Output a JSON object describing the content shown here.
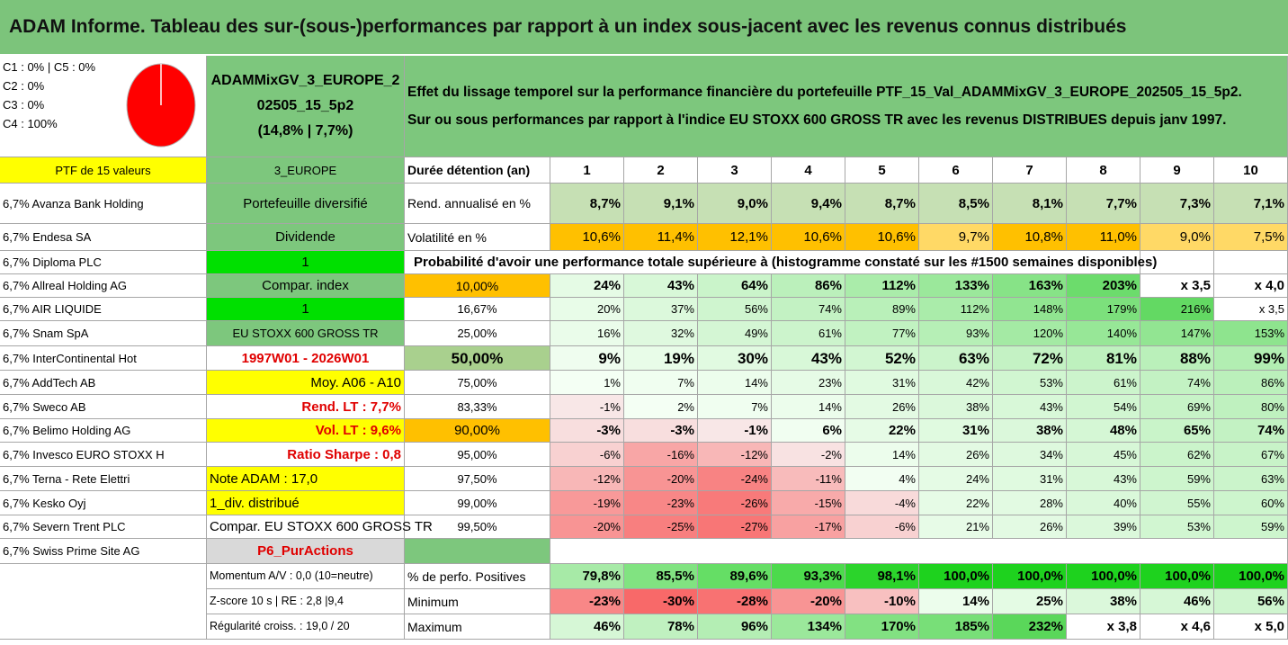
{
  "title": "ADAM Informe. Tableau des sur-(sous-)performances par rapport à un index sous-jacent avec les revenus connus distribués",
  "pie_legend": [
    "C1 : 0% | C5 : 0%",
    "C2 : 0%",
    "C3 : 0%",
    "C4 : 100%"
  ],
  "portfolio_name": [
    "ADAMMixGV_3_EUROPE_2",
    "02505_15_5p2",
    "(14,8% | 7,7%)"
  ],
  "description": [
    "Effet du lissage temporel sur la performance financière du portefeuille PTF_15_Val_ADAMMixGV_3_EUROPE_202505_15_5p2.",
    "Sur ou sous performances par rapport à l'indice EU STOXX 600 GROSS TR avec les revenus DISTRIBUES depuis janv 1997."
  ],
  "ptf_label": "PTF de 15 valeurs",
  "holdings": [
    "6,7% Avanza Bank Holding",
    "6,7% Endesa SA",
    "6,7% Diploma PLC",
    "6,7% Allreal Holding AG",
    "6,7% AIR LIQUIDE",
    "6,7% Snam SpA",
    "6,7% InterContinental Hot",
    "6,7% AddTech AB",
    "6,7% Sweco AB",
    "6,7% Belimo Holding AG",
    "6,7% Invesco EURO STOXX H",
    "6,7% Terna - Rete Elettri",
    "6,7% Kesko Oyj",
    "6,7% Severn Trent PLC",
    "6,7% Swiss Prime Site AG"
  ],
  "info": [
    "3_EUROPE",
    "Portefeuille diversifié",
    "Dividende",
    "1",
    "Compar. index",
    "1",
    "EU STOXX 600 GROSS TR",
    "1997W01 - 2026W01",
    "Moy. A06 - A10",
    "Rend. LT : 7,7%",
    "Vol. LT : 9,6%",
    "Ratio Sharpe : 0,8",
    "Note ADAM : 17,0",
    "1_div. distribué",
    "Compar. EU STOXX 600 GROSS TR",
    "P6_PurActions"
  ],
  "stats_labels": [
    "Momentum A/V : 0,0 (10=neutre)",
    "Z-score 10 s | RE : 2,8 |9,4",
    "Régularité croiss. : 19,0 / 20"
  ],
  "header": {
    "label": "Durée détention (an)",
    "years": [
      "1",
      "2",
      "3",
      "4",
      "5",
      "6",
      "7",
      "8",
      "9",
      "10"
    ]
  },
  "rend": {
    "label": "Rend. annualisé en %",
    "values": [
      "8,7%",
      "9,1%",
      "9,0%",
      "9,4%",
      "8,7%",
      "8,5%",
      "8,1%",
      "7,7%",
      "7,3%",
      "7,1%"
    ]
  },
  "vol": {
    "label": "Volatilité en %",
    "values": [
      "10,6%",
      "11,4%",
      "12,1%",
      "10,6%",
      "10,6%",
      "9,7%",
      "10,8%",
      "11,0%",
      "9,0%",
      "7,5%"
    ]
  },
  "prob_title": "Probabilité d'avoir une performance totale supérieure à (histogramme constaté sur les #1500 semaines disponibles)",
  "prob_rows": [
    {
      "p": "10,00%",
      "v": [
        "24%",
        "43%",
        "64%",
        "86%",
        "112%",
        "133%",
        "163%",
        "203%",
        "x 3,5",
        "x 4,0"
      ]
    },
    {
      "p": "16,67%",
      "v": [
        "20%",
        "37%",
        "56%",
        "74%",
        "89%",
        "112%",
        "148%",
        "179%",
        "216%",
        "x 3,5"
      ]
    },
    {
      "p": "25,00%",
      "v": [
        "16%",
        "32%",
        "49%",
        "61%",
        "77%",
        "93%",
        "120%",
        "140%",
        "147%",
        "153%"
      ]
    },
    {
      "p": "50,00%",
      "v": [
        "9%",
        "19%",
        "30%",
        "43%",
        "52%",
        "63%",
        "72%",
        "81%",
        "88%",
        "99%"
      ]
    },
    {
      "p": "75,00%",
      "v": [
        "1%",
        "7%",
        "14%",
        "23%",
        "31%",
        "42%",
        "53%",
        "61%",
        "74%",
        "86%"
      ]
    },
    {
      "p": "83,33%",
      "v": [
        "-1%",
        "2%",
        "7%",
        "14%",
        "26%",
        "38%",
        "43%",
        "54%",
        "69%",
        "80%"
      ]
    },
    {
      "p": "90,00%",
      "v": [
        "-3%",
        "-3%",
        "-1%",
        "6%",
        "22%",
        "31%",
        "38%",
        "48%",
        "65%",
        "74%"
      ]
    },
    {
      "p": "95,00%",
      "v": [
        "-6%",
        "-16%",
        "-12%",
        "-2%",
        "14%",
        "26%",
        "34%",
        "45%",
        "62%",
        "67%"
      ]
    },
    {
      "p": "97,50%",
      "v": [
        "-12%",
        "-20%",
        "-24%",
        "-11%",
        "4%",
        "24%",
        "31%",
        "43%",
        "59%",
        "63%"
      ]
    },
    {
      "p": "99,00%",
      "v": [
        "-19%",
        "-23%",
        "-26%",
        "-15%",
        "-4%",
        "22%",
        "28%",
        "40%",
        "55%",
        "60%"
      ]
    },
    {
      "p": "99,50%",
      "v": [
        "-20%",
        "-25%",
        "-27%",
        "-17%",
        "-6%",
        "21%",
        "26%",
        "39%",
        "53%",
        "59%"
      ]
    }
  ],
  "summary_rows": [
    {
      "label": "% de perfo. Positives",
      "v": [
        "79,8%",
        "85,5%",
        "89,6%",
        "93,3%",
        "98,1%",
        "100,0%",
        "100,0%",
        "100,0%",
        "100,0%",
        "100,0%"
      ]
    },
    {
      "label": "Minimum",
      "v": [
        "-23%",
        "-30%",
        "-28%",
        "-20%",
        "-10%",
        "14%",
        "25%",
        "38%",
        "46%",
        "56%"
      ]
    },
    {
      "label": "Maximum",
      "v": [
        "46%",
        "78%",
        "96%",
        "134%",
        "170%",
        "185%",
        "232%",
        "x 3,8",
        "x 4,6",
        "x 5,0"
      ]
    }
  ],
  "colors": {
    "title_bg": "#7cc47b",
    "green_header": "#7dc77d",
    "yellow": "#ffff00",
    "orange": "#ffc000",
    "lime": "#00e000",
    "red_text": "#e00000"
  }
}
